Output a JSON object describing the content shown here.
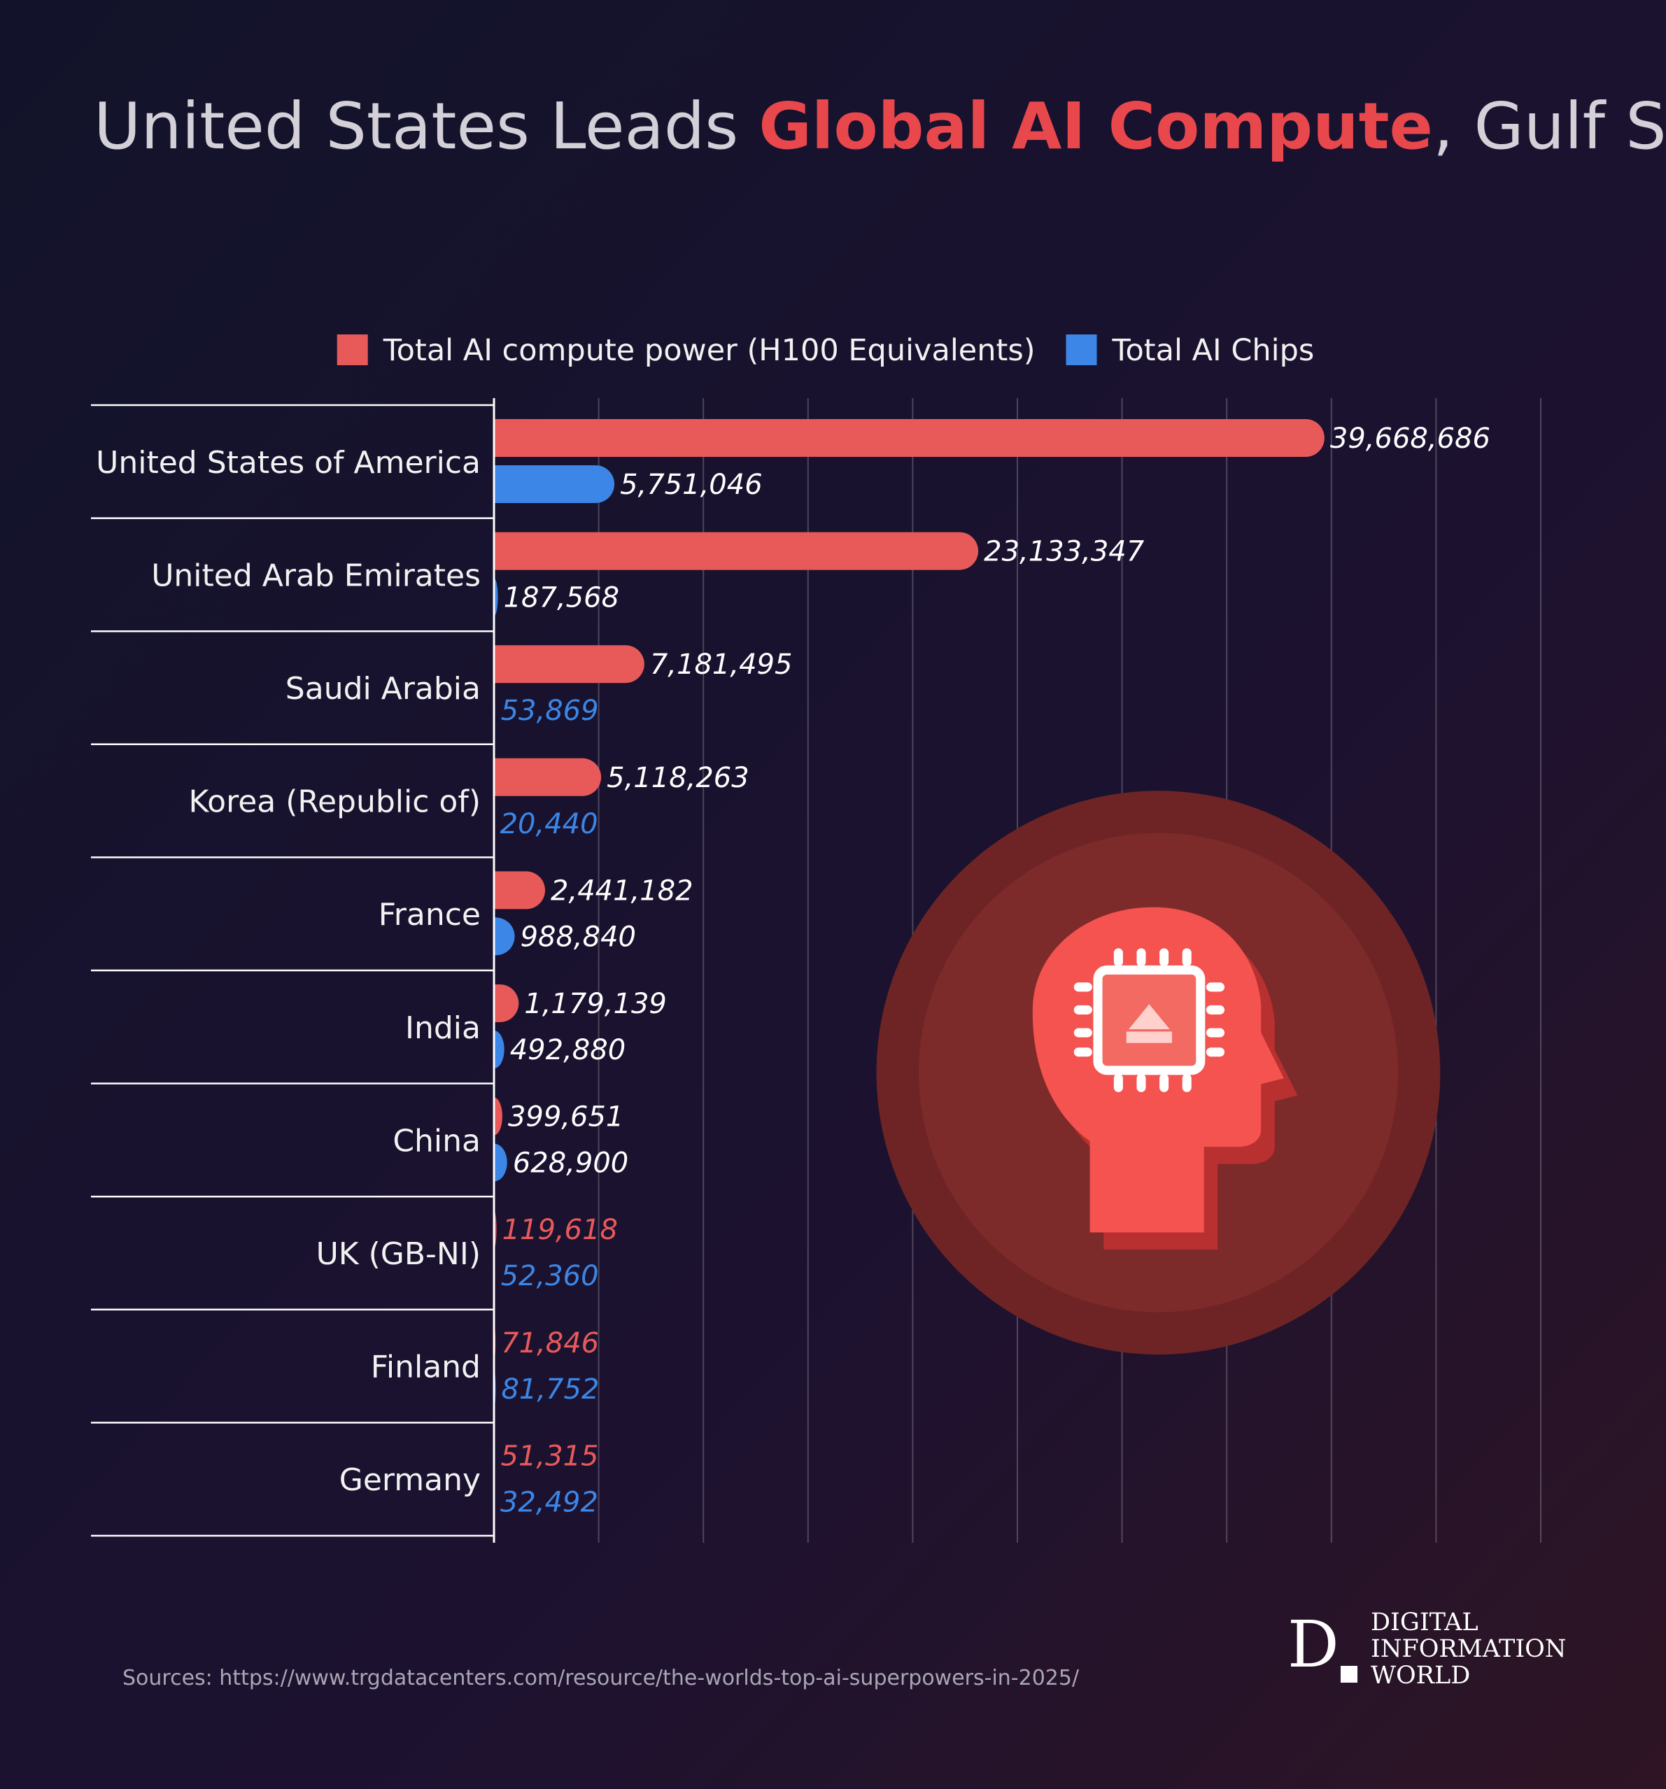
{
  "chart_data": {
    "type": "bar",
    "orientation": "horizontal",
    "title": [
      "United States Leads ",
      "Global AI Compute",
      ", Gulf States and Asia Show Contrasting Strategies"
    ],
    "categories": [
      "United States of America",
      "United Arab Emirates",
      "Saudi Arabia",
      "Korea (Republic of)",
      "France",
      "India",
      "China",
      "UK (GB-NI)",
      "Finland",
      "Germany"
    ],
    "series": [
      {
        "name": "Total AI compute power (H100 Equivalents)",
        "color": "#e85a5a",
        "values": [
          39668686,
          23133347,
          7181495,
          5118263,
          2441182,
          1179139,
          399651,
          119618,
          71846,
          51315
        ],
        "value_labels": [
          "39,668,686",
          "23,133,347",
          "7,181,495",
          "5,118,263",
          "2,441,182",
          "1,179,139",
          "399,651",
          "119,618",
          "71,846",
          "51,315"
        ]
      },
      {
        "name": "Total AI Chips",
        "color": "#3b86e6",
        "values": [
          5751046,
          187568,
          53869,
          20440,
          988840,
          492880,
          628900,
          52360,
          81752,
          32492
        ],
        "value_labels": [
          "5,751,046",
          "187,568",
          "53,869",
          "20,440",
          "988,840",
          "492,880",
          "628,900",
          "52,360",
          "81,752",
          "32,492"
        ]
      }
    ],
    "xlim": [
      0,
      50000000
    ],
    "xticks": [
      0,
      5000000,
      10000000,
      15000000,
      20000000,
      25000000,
      30000000,
      35000000,
      40000000,
      45000000,
      50000000
    ],
    "grid": true,
    "legend": "top",
    "source": "Sources: https://www.trgdatacenters.com/resource/the-worlds-top-ai-superpowers-in-2025/",
    "logo": {
      "mark": "D",
      "lines": [
        "DIGITAL",
        "INFORMATION",
        "WORLD"
      ]
    }
  }
}
